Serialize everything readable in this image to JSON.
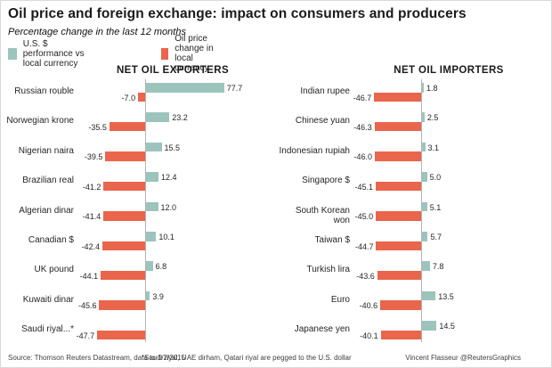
{
  "title": "Oil price and foreign exchange: impact on consumers and producers",
  "subtitle": "Percentage change in the last 12 months",
  "legend": [
    {
      "label": "U.S. $ performance vs local currency",
      "color": "#9cc4bd"
    },
    {
      "label": "Oil price change in local currency",
      "color": "#e9654b"
    }
  ],
  "footer": {
    "source": "Source: Thomson Reuters Datastream, data to 1/2/2015",
    "note": "*Saudi riyal, UAE dirham, Qatari riyal are pegged to the U.S. dollar",
    "credit": "Vincent Flasseur @ReutersGraphics"
  },
  "chart_data": [
    {
      "type": "bar",
      "orientation": "horizontal",
      "title": "NET OIL EXPORTERS",
      "categories": [
        "Russian rouble",
        "Norwegian krone",
        "Nigerian naira",
        "Brazilian real",
        "Algerian dinar",
        "Canadian $",
        "UK pound",
        "Kuwaiti dinar",
        "Saudi riyal...*"
      ],
      "series": [
        {
          "name": "U.S. $ performance vs local currency",
          "color": "#9cc4bd",
          "values": [
            77.7,
            23.2,
            15.5,
            12.4,
            12.0,
            10.1,
            6.8,
            3.9,
            null
          ]
        },
        {
          "name": "Oil price change in local currency",
          "color": "#e9654b",
          "values": [
            -7.0,
            -35.5,
            -39.5,
            -41.2,
            -41.4,
            -42.4,
            -44.1,
            -45.6,
            -47.7
          ]
        }
      ],
      "xlim": [
        -55,
        90
      ],
      "grid": false,
      "value_labels": true
    },
    {
      "type": "bar",
      "orientation": "horizontal",
      "title": "NET OIL IMPORTERS",
      "categories": [
        "Indian rupee",
        "Chinese yuan",
        "Indonesian rupiah",
        "Singapore $",
        "South Korean won",
        "Taiwan $",
        "Turkish lira",
        "Euro",
        "Japanese yen"
      ],
      "series": [
        {
          "name": "U.S. $ performance vs local currency",
          "color": "#9cc4bd",
          "values": [
            1.8,
            2.5,
            3.1,
            5.0,
            5.1,
            5.7,
            7.8,
            13.5,
            14.5
          ]
        },
        {
          "name": "Oil price change in local currency",
          "color": "#e9654b",
          "values": [
            -46.7,
            -46.3,
            -46.0,
            -45.1,
            -45.0,
            -44.7,
            -43.6,
            -40.6,
            -40.1
          ]
        }
      ],
      "xlim": [
        -55,
        90
      ],
      "grid": false,
      "value_labels": true
    }
  ]
}
